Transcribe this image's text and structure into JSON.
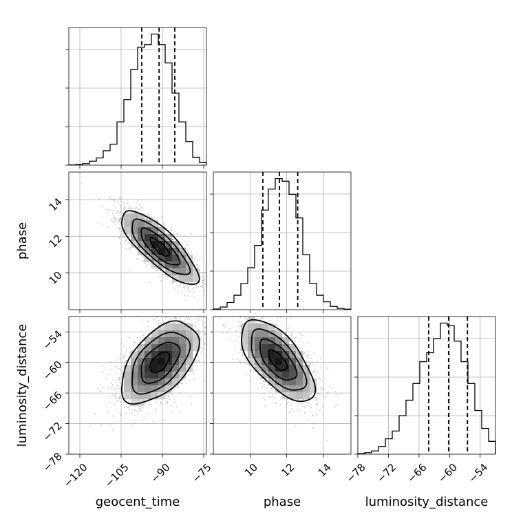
{
  "chart_data": {
    "type": "corner",
    "title": "",
    "grid": true,
    "parameters": [
      {
        "name": "geocent_time",
        "label": "geocent_time",
        "range": [
          -124,
          -74
        ],
        "ticks": [
          -120,
          -105,
          -90,
          -75
        ],
        "tick_labels": [
          "−120",
          "−105",
          "−90",
          "−75"
        ],
        "quantiles": [
          -97.5,
          -91.2,
          -85.5
        ],
        "hist_x": [
          -124,
          -121.5,
          -119,
          -116.5,
          -114,
          -111.5,
          -109,
          -106.5,
          -104,
          -101.5,
          -99,
          -96.5,
          -94,
          -91.5,
          -89,
          -86.5,
          -84,
          -81.5,
          -79,
          -76.5,
          -74
        ],
        "hist_counts": [
          0.002,
          0.005,
          0.012,
          0.03,
          0.055,
          0.11,
          0.16,
          0.33,
          0.5,
          0.73,
          0.9,
          0.92,
          1.0,
          0.92,
          0.78,
          0.55,
          0.33,
          0.18,
          0.06,
          0.02
        ]
      },
      {
        "name": "phase",
        "label": "phase",
        "range": [
          8.0,
          15.5
        ],
        "ticks": [
          10,
          12,
          14
        ],
        "tick_labels": [
          "10",
          "12",
          "14"
        ],
        "quantiles": [
          10.7,
          11.6,
          12.6
        ],
        "hist_x": [
          8.0,
          8.375,
          8.75,
          9.125,
          9.5,
          9.875,
          10.25,
          10.625,
          11.0,
          11.375,
          11.75,
          12.125,
          12.5,
          12.875,
          13.25,
          13.625,
          14.0,
          14.375,
          14.75,
          15.125,
          15.5
        ],
        "hist_counts": [
          0.005,
          0.02,
          0.055,
          0.11,
          0.2,
          0.32,
          0.49,
          0.76,
          0.92,
          1.0,
          0.98,
          0.88,
          0.7,
          0.42,
          0.2,
          0.11,
          0.06,
          0.025,
          0.01,
          0.004
        ]
      },
      {
        "name": "luminosity_distance",
        "label": "luminosity_distance",
        "range": [
          -78,
          -51
        ],
        "ticks": [
          -78,
          -72,
          -66,
          -60,
          -54
        ],
        "tick_labels": [
          "−78",
          "−72",
          "−66",
          "−60",
          "−54"
        ],
        "quantiles": [
          -64.1,
          -60.2,
          -56.5
        ],
        "hist_x": [
          -78,
          -76.65,
          -75.3,
          -73.95,
          -72.6,
          -71.25,
          -69.9,
          -68.55,
          -67.2,
          -65.85,
          -64.5,
          -63.15,
          -61.8,
          -60.45,
          -59.1,
          -57.75,
          -56.4,
          -55.05,
          -53.7,
          -52.35,
          -51
        ],
        "hist_counts": [
          0.005,
          0.012,
          0.025,
          0.06,
          0.12,
          0.18,
          0.3,
          0.42,
          0.55,
          0.72,
          0.79,
          0.9,
          1.02,
          1.0,
          0.88,
          0.72,
          0.55,
          0.34,
          0.2,
          0.1
        ]
      }
    ],
    "pairs": [
      {
        "x": "geocent_time",
        "y": "phase",
        "center": [
          -91.0,
          11.4
        ],
        "covariance": [
          [
            49,
            -5.6
          ],
          [
            -5.6,
            1.0
          ]
        ],
        "contour_levels_sigma": [
          0.5,
          1.0,
          1.5,
          2.0
        ]
      },
      {
        "x": "geocent_time",
        "y": "luminosity_distance",
        "center": [
          -91.0,
          -60.0
        ],
        "covariance": [
          [
            49,
            14.7
          ],
          [
            14.7,
            16
          ]
        ],
        "contour_levels_sigma": [
          0.5,
          1.0,
          1.5,
          2.0
        ]
      },
      {
        "x": "phase",
        "y": "luminosity_distance",
        "center": [
          11.5,
          -59.6
        ],
        "covariance": [
          [
            1.0,
            -2.6
          ],
          [
            -2.6,
            16
          ]
        ],
        "contour_levels_sigma": [
          0.5,
          1.0,
          1.5,
          2.0
        ]
      }
    ]
  }
}
